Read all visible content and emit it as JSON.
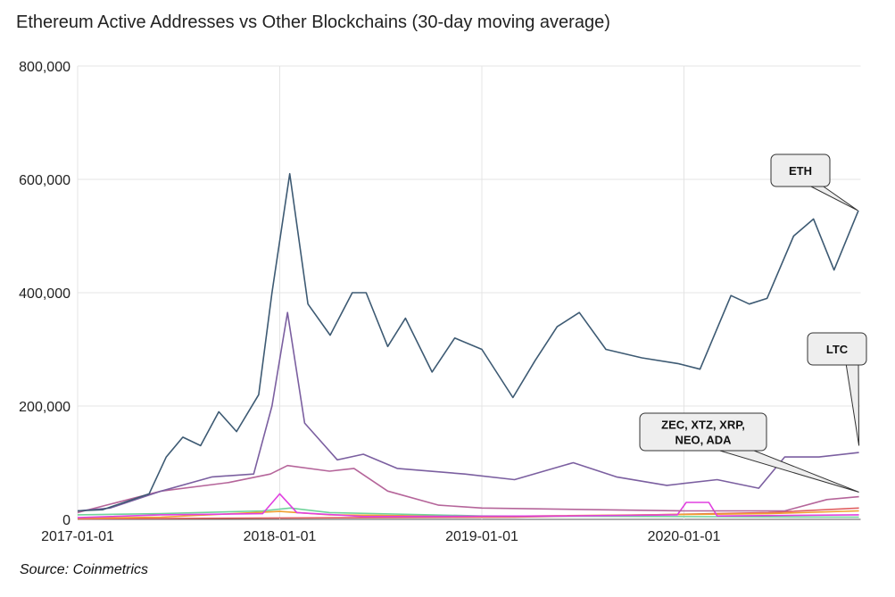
{
  "chart_data": {
    "type": "line",
    "title": "Ethereum Active Addresses vs Other Blockchains (30-day moving average)",
    "source": "Source: Coinmetrics",
    "ylim": [
      0,
      800000
    ],
    "xlim": [
      "2017-01-01",
      "2020-11-15"
    ],
    "y_ticks": [
      "0",
      "200,000",
      "400,000",
      "600,000",
      "800,000"
    ],
    "x_ticks": [
      "2017-01-01",
      "2018-01-01",
      "2019-01-01",
      "2020-01-01"
    ],
    "grid": true,
    "annotations": [
      {
        "text": "ETH",
        "points_to": [
          "2020-11-10",
          545000
        ]
      },
      {
        "text": "LTC",
        "points_to": [
          "2020-11-12",
          130000
        ]
      },
      {
        "text": "ZEC, XTZ, XRP, NEO, ADA",
        "lines": [
          "ZEC, XTZ, XRP,",
          "NEO, ADA"
        ],
        "points_to": [
          "2020-11-12",
          48000
        ]
      }
    ],
    "series": [
      {
        "color": "#3d5a73",
        "points": [
          [
            "2017-01-01",
            15000
          ],
          [
            "2017-02-15",
            17000
          ],
          [
            "2017-04-01",
            32000
          ],
          [
            "2017-05-10",
            45000
          ],
          [
            "2017-06-10",
            110000
          ],
          [
            "2017-07-10",
            145000
          ],
          [
            "2017-08-11",
            130000
          ],
          [
            "2017-09-13",
            190000
          ],
          [
            "2017-10-15",
            155000
          ],
          [
            "2017-11-24",
            220000
          ],
          [
            "2017-12-18",
            400000
          ],
          [
            "2018-01-19",
            610000
          ],
          [
            "2018-02-21",
            380000
          ],
          [
            "2018-04-02",
            325000
          ],
          [
            "2018-05-12",
            400000
          ],
          [
            "2018-06-06",
            400000
          ],
          [
            "2018-07-15",
            305000
          ],
          [
            "2018-08-16",
            355000
          ],
          [
            "2018-10-03",
            260000
          ],
          [
            "2018-11-13",
            320000
          ],
          [
            "2019-01-01",
            300000
          ],
          [
            "2019-02-26",
            215000
          ],
          [
            "2019-04-07",
            280000
          ],
          [
            "2019-05-17",
            340000
          ],
          [
            "2019-06-26",
            365000
          ],
          [
            "2019-08-13",
            300000
          ],
          [
            "2019-10-17",
            285000
          ],
          [
            "2019-12-21",
            275000
          ],
          [
            "2020-01-30",
            265000
          ],
          [
            "2020-03-26",
            395000
          ],
          [
            "2020-04-28",
            380000
          ],
          [
            "2020-05-30",
            390000
          ],
          [
            "2020-07-17",
            500000
          ],
          [
            "2020-08-22",
            530000
          ],
          [
            "2020-09-28",
            440000
          ],
          [
            "2020-11-11",
            545000
          ]
        ]
      },
      {
        "color": "#7b5fa0",
        "points": [
          [
            "2017-01-01",
            15000
          ],
          [
            "2017-03-01",
            20000
          ],
          [
            "2017-06-01",
            50000
          ],
          [
            "2017-09-01",
            75000
          ],
          [
            "2017-11-15",
            80000
          ],
          [
            "2017-12-18",
            200000
          ],
          [
            "2018-01-15",
            365000
          ],
          [
            "2018-02-15",
            170000
          ],
          [
            "2018-04-15",
            105000
          ],
          [
            "2018-06-01",
            115000
          ],
          [
            "2018-08-01",
            90000
          ],
          [
            "2018-12-01",
            80000
          ],
          [
            "2019-03-01",
            70000
          ],
          [
            "2019-06-15",
            100000
          ],
          [
            "2019-09-01",
            75000
          ],
          [
            "2019-12-01",
            60000
          ],
          [
            "2020-03-01",
            70000
          ],
          [
            "2020-05-15",
            55000
          ],
          [
            "2020-07-01",
            110000
          ],
          [
            "2020-09-01",
            110000
          ],
          [
            "2020-11-12",
            118000
          ]
        ]
      },
      {
        "color": "#b5659a",
        "points": [
          [
            "2017-01-01",
            12000
          ],
          [
            "2017-06-01",
            50000
          ],
          [
            "2017-10-01",
            65000
          ],
          [
            "2017-12-15",
            80000
          ],
          [
            "2018-01-15",
            95000
          ],
          [
            "2018-04-01",
            85000
          ],
          [
            "2018-05-15",
            90000
          ],
          [
            "2018-07-15",
            50000
          ],
          [
            "2018-10-15",
            25000
          ],
          [
            "2019-01-01",
            20000
          ],
          [
            "2020-01-01",
            15000
          ],
          [
            "2020-07-01",
            15000
          ],
          [
            "2020-09-15",
            35000
          ],
          [
            "2020-11-12",
            40000
          ]
        ]
      },
      {
        "color": "#e040e0",
        "points": [
          [
            "2017-01-01",
            3000
          ],
          [
            "2017-06-01",
            8000
          ],
          [
            "2017-12-01",
            10000
          ],
          [
            "2018-01-01",
            45000
          ],
          [
            "2018-02-01",
            12000
          ],
          [
            "2018-06-01",
            5000
          ],
          [
            "2019-06-01",
            6000
          ],
          [
            "2019-12-20",
            8000
          ],
          [
            "2020-01-05",
            30000
          ],
          [
            "2020-02-15",
            30000
          ],
          [
            "2020-03-01",
            6000
          ],
          [
            "2020-11-12",
            8000
          ]
        ]
      },
      {
        "color": "#6fd39a",
        "points": [
          [
            "2017-01-01",
            8000
          ],
          [
            "2017-06-01",
            10000
          ],
          [
            "2017-12-01",
            15000
          ],
          [
            "2018-01-20",
            20000
          ],
          [
            "2018-04-01",
            12000
          ],
          [
            "2019-01-01",
            6000
          ],
          [
            "2020-11-12",
            4000
          ]
        ]
      },
      {
        "color": "#f0a030",
        "points": [
          [
            "2017-01-01",
            2000
          ],
          [
            "2017-06-01",
            4000
          ],
          [
            "2018-01-01",
            14000
          ],
          [
            "2018-04-01",
            8000
          ],
          [
            "2019-01-01",
            5000
          ],
          [
            "2020-06-01",
            10000
          ],
          [
            "2020-11-12",
            15000
          ]
        ]
      },
      {
        "color": "#e06060",
        "points": [
          [
            "2017-01-01",
            1000
          ],
          [
            "2018-06-01",
            3000
          ],
          [
            "2019-03-01",
            4000
          ],
          [
            "2019-11-01",
            8000
          ],
          [
            "2020-06-01",
            12000
          ],
          [
            "2020-11-12",
            20000
          ]
        ]
      }
    ]
  }
}
